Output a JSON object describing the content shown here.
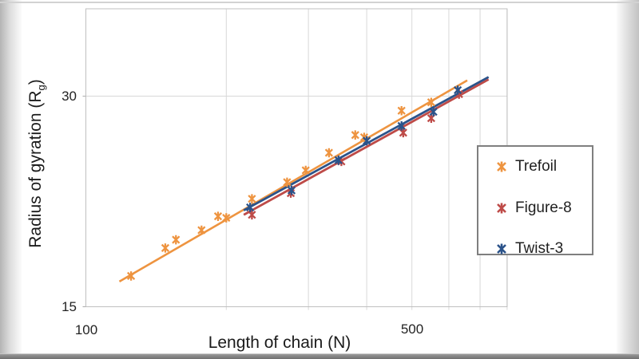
{
  "frame": {
    "background_color": "#ffffff",
    "edge_color": "#b4b4b4",
    "bottom_bar_color": "#6f6f6f"
  },
  "chart_data": {
    "type": "scatter",
    "title": "",
    "xlabel": "Length of chain (N)",
    "ylabel": "Radius of gyration (Rg)",
    "ylabel_parts": {
      "main": "Radius of gyration (R",
      "sub": "g",
      "close": ")"
    },
    "x_scale": "log",
    "y_scale": "log",
    "xlim": [
      100,
      800
    ],
    "ylim": [
      15,
      40
    ],
    "x_gridlines": [
      200,
      300,
      400,
      500,
      600,
      700,
      800
    ],
    "y_gridlines": [
      30
    ],
    "x_ticks": [
      {
        "value": 100,
        "label": "100"
      },
      {
        "value": 500,
        "label": "500"
      }
    ],
    "y_ticks": [
      {
        "value": 15,
        "label": "15"
      },
      {
        "value": 30,
        "label": "30"
      }
    ],
    "grid_color": "#d8d8d8",
    "plot_border_color": "#bfbfbf",
    "legend_position": "right-outside",
    "marker_style": "x-with-vertical-star",
    "series": [
      {
        "name": "Trefoil",
        "color": "#EE9440",
        "points": [
          [
            125,
            16.6
          ],
          [
            148,
            18.2
          ],
          [
            156,
            18.7
          ],
          [
            177,
            19.3
          ],
          [
            192,
            20.2
          ],
          [
            200,
            20.1
          ],
          [
            227,
            21.4
          ],
          [
            270,
            22.6
          ],
          [
            296,
            23.5
          ],
          [
            332,
            24.9
          ],
          [
            378,
            26.4
          ],
          [
            395,
            26.2
          ],
          [
            475,
            28.6
          ],
          [
            550,
            29.4
          ]
        ],
        "trendline": {
          "x1": 118,
          "y1": 16.3,
          "x2": 657,
          "y2": 31.6
        }
      },
      {
        "name": "Figure-8",
        "color": "#BE4B48",
        "points": [
          [
            227,
            20.3
          ],
          [
            275,
            21.8
          ],
          [
            353,
            24.2
          ],
          [
            479,
            26.6
          ],
          [
            550,
            27.9
          ],
          [
            631,
            30.2
          ]
        ],
        "trendline": {
          "x1": 218,
          "y1": 20.3,
          "x2": 730,
          "y2": 31.7
        }
      },
      {
        "name": "Twist-3",
        "color": "#2B538A",
        "points": [
          [
            225,
            20.8
          ],
          [
            276,
            22.0
          ],
          [
            348,
            24.3
          ],
          [
            400,
            25.9
          ],
          [
            475,
            27.2
          ],
          [
            556,
            28.5
          ],
          [
            627,
            30.6
          ]
        ],
        "trendline": {
          "x1": 218,
          "y1": 20.6,
          "x2": 730,
          "y2": 31.95
        }
      }
    ]
  }
}
